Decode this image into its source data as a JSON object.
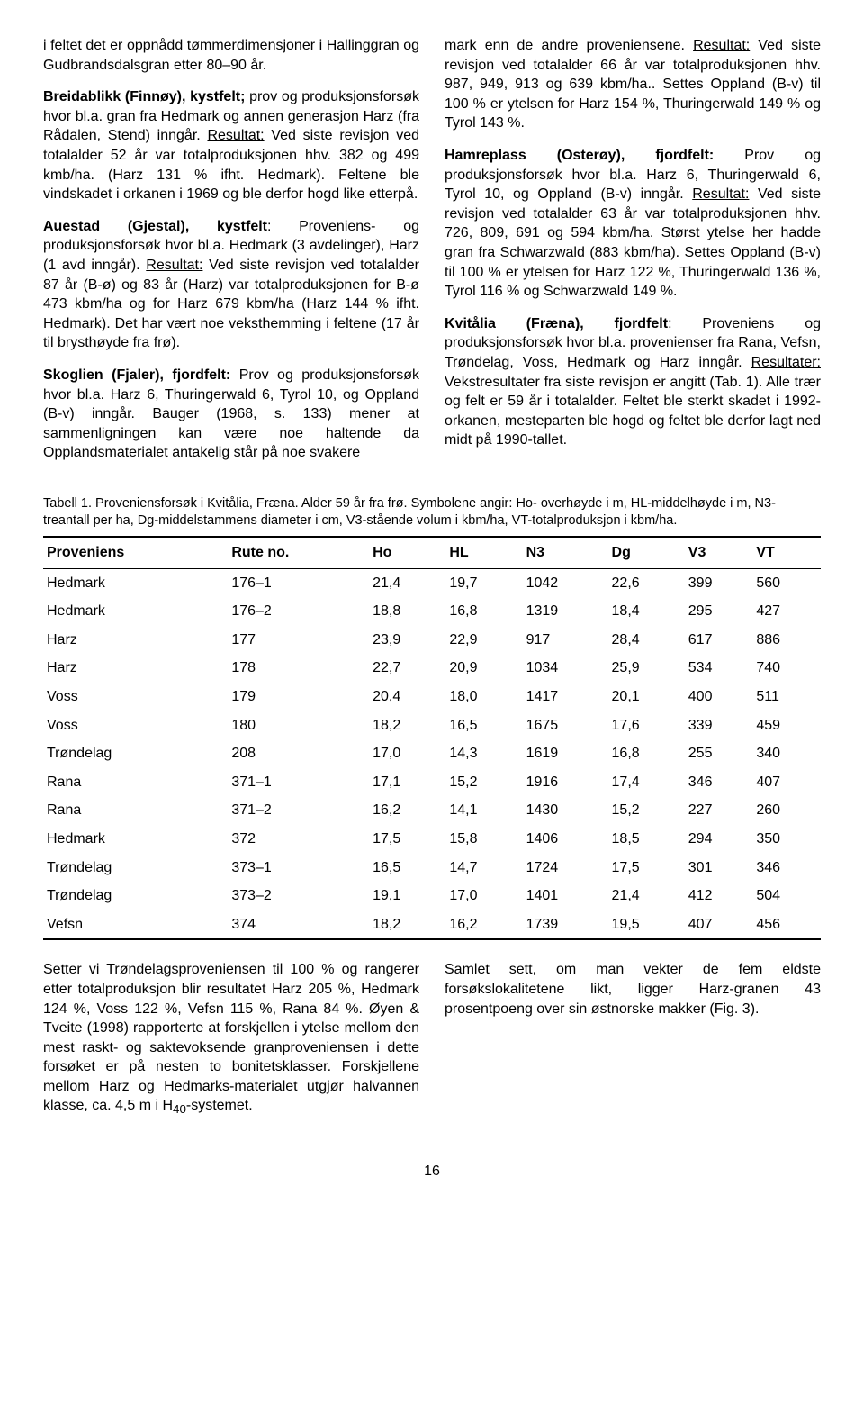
{
  "left": {
    "p1": "i feltet det er oppnådd tømmerdimensjoner i Hallinggran og Gudbrandsdalsgran etter 80–90 år.",
    "p2_title": "Breidablikk (Finnøy), kystfelt;",
    "p2_rest": " prov og produksjonsforsøk hvor bl.a. gran fra Hedmark og annen generasjon Harz (fra Rådalen, Stend) inngår. ",
    "p2_res_label": "Resultat:",
    "p2_res": " Ved siste revisjon ved totalalder 52 år var totalproduksjonen hhv. 382 og 499 kmb/ha. (Harz 131 % ifht. Hedmark). Feltene ble vindskadet i orkanen i 1969 og ble derfor hogd like etterpå.",
    "p3_title": "Auestad (Gjestal), kystfelt",
    "p3_rest": ": Proveniens- og produksjonsforsøk hvor bl.a. Hedmark (3 avdelinger), Harz (1 avd inngår). ",
    "p3_res_label": "Resultat:",
    "p3_res": " Ved siste revisjon ved totalalder 87 år (B-ø) og 83 år (Harz) var totalproduksjonen for B-ø 473 kbm/ha og for Harz 679 kbm/ha (Harz 144 % ifht. Hedmark). Det har vært noe veksthemming i feltene (17 år til brysthøyde fra frø).",
    "p4_title": "Skoglien (Fjaler), fjordfelt:",
    "p4_rest": " Prov og produksjonsforsøk hvor bl.a. Harz 6, Thuringerwald 6, Tyrol 10, og Oppland (B-v) inngår. Bauger (1968, s. 133) mener at sammenligningen kan være noe haltende da Opplandsmaterialet antakelig står på noe svakere "
  },
  "right": {
    "p1a": "mark enn de andre proveniensene. ",
    "p1_res_label": "Resultat:",
    "p1b": " Ved siste revisjon ved totalalder 66 år var totalproduksjonen hhv. 987, 949, 913 og 639 kbm/ha.. Settes Oppland (B-v) til 100 % er ytelsen for Harz 154 %, Thuringerwald 149 % og Tyrol 143 %.",
    "p2_title": "Hamreplass (Osterøy), fjordfelt:",
    "p2_rest": " Prov og produksjonsforsøk hvor bl.a. Harz 6, Thuringerwald 6, Tyrol 10, og Oppland (B-v) inngår. ",
    "p2_res_label": "Resultat:",
    "p2_res": " Ved siste revisjon ved totalalder 63 år var totalproduksjonen hhv. 726, 809, 691 og 594 kbm/ha. Størst ytelse her hadde gran fra Schwarzwald (883 kbm/ha). Settes Oppland (B-v) til 100 % er ytelsen for Harz 122 %, Thuringerwald 136 %, Tyrol 116 % og Schwarzwald 149 %.",
    "p3_title": "Kvitålia (Fræna), fjordfelt",
    "p3_rest": ": Proveniens og produksjonsforsøk hvor bl.a. provenienser fra Rana, Vefsn, Trøndelag, Voss, Hedmark og Harz inngår. ",
    "p3_res_label": "Resultater:",
    "p3_res": " Vekstresultater fra siste revisjon er angitt (Tab. 1). Alle trær og felt er 59 år i totalalder. Feltet ble sterkt skadet i 1992-orkanen, mesteparten ble hogd og feltet ble derfor lagt ned midt på 1990-tallet."
  },
  "table": {
    "caption": "Tabell 1. Proveniensforsøk i Kvitålia, Fræna. Alder 59 år fra frø. Symbolene angir: Ho- overhøyde i m, HL-middelhøyde i m, N3-treantall per ha, Dg-middelstammens diameter i cm, V3-stående volum i kbm/ha, VT-totalproduksjon i kbm/ha.",
    "columns": [
      "Proveniens",
      "Rute no.",
      "Ho",
      "HL",
      "N3",
      "Dg",
      "V3",
      "VT"
    ],
    "rows": [
      [
        "Hedmark",
        "176–1",
        "21,4",
        "19,7",
        "1042",
        "22,6",
        "399",
        "560"
      ],
      [
        "Hedmark",
        "176–2",
        "18,8",
        "16,8",
        "1319",
        "18,4",
        "295",
        "427"
      ],
      [
        "Harz",
        "177",
        "23,9",
        "22,9",
        "917",
        "28,4",
        "617",
        "886"
      ],
      [
        "Harz",
        "178",
        "22,7",
        "20,9",
        "1034",
        "25,9",
        "534",
        "740"
      ],
      [
        "Voss",
        "179",
        "20,4",
        "18,0",
        "1417",
        "20,1",
        "400",
        "511"
      ],
      [
        "Voss",
        "180",
        "18,2",
        "16,5",
        "1675",
        "17,6",
        "339",
        "459"
      ],
      [
        "Trøndelag",
        "208",
        "17,0",
        "14,3",
        "1619",
        "16,8",
        "255",
        "340"
      ],
      [
        "Rana",
        "371–1",
        "17,1",
        "15,2",
        "1916",
        "17,4",
        "346",
        "407"
      ],
      [
        "Rana",
        "371–2",
        "16,2",
        "14,1",
        "1430",
        "15,2",
        "227",
        "260"
      ],
      [
        "Hedmark",
        "372",
        "17,5",
        "15,8",
        "1406",
        "18,5",
        "294",
        "350"
      ],
      [
        "Trøndelag",
        "373–1",
        "16,5",
        "14,7",
        "1724",
        "17,5",
        "301",
        "346"
      ],
      [
        "Trøndelag",
        "373–2",
        "19,1",
        "17,0",
        "1401",
        "21,4",
        "412",
        "504"
      ],
      [
        "Vefsn",
        "374",
        "18,2",
        "16,2",
        "1739",
        "19,5",
        "407",
        "456"
      ]
    ]
  },
  "bottom_left": "Setter vi Trøndelagsproveniensen til 100 % og rangerer etter totalproduksjon blir resultatet Harz 205 %, Hedmark 124 %, Voss 122 %, Vefsn 115 %, Rana 84 %. Øyen & Tveite (1998) rapporterte at forskjellen i ytelse mellom den mest raskt- og saktevoksende granproveniensen i dette forsøket er på nesten to bonitetsklasser. Forskjellene mellom Harz og Hedmarks-materialet utgjør halvannen klasse, ca. 4,5 m i H",
  "bottom_left_sub": "40",
  "bottom_left_tail": "-systemet.",
  "bottom_right": "Samlet sett, om man vekter de fem eldste forsøkslokalitetene likt, ligger Harz-granen 43 prosentpoeng over sin østnorske makker (Fig. 3).",
  "page_number": "16"
}
